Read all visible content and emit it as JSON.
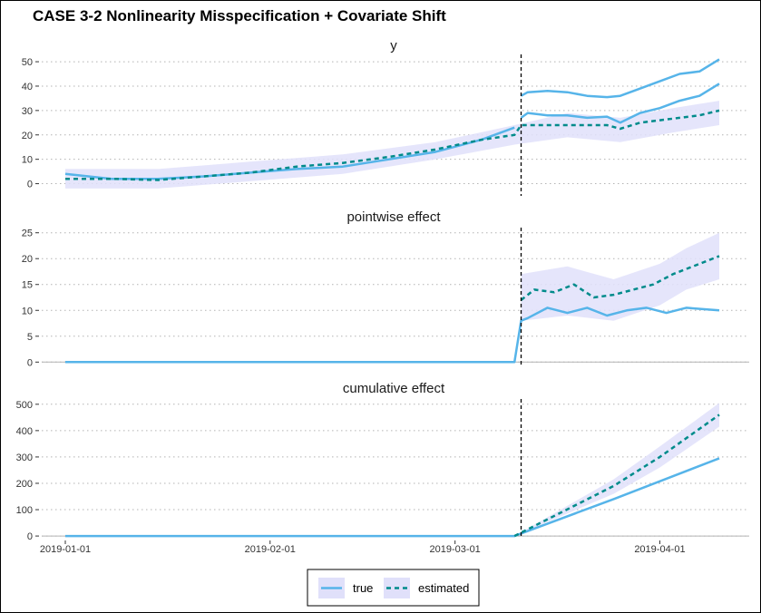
{
  "chart_data": {
    "type": "line",
    "title": "CASE 3-2 Nonlinearity Misspecification + Covariate Shift",
    "x_axis": {
      "type": "date",
      "range": [
        "2019-01-01",
        "2019-04-10"
      ],
      "tick_labels": [
        "2019-01-01",
        "2019-02-01",
        "2019-03-01",
        "2019-04-01"
      ],
      "intervention_date": "2019-03-11"
    },
    "colors": {
      "true": "#56b4e9",
      "estimated": "#008b8b",
      "band": "#e0e0fa",
      "intervention_line": "#000000"
    },
    "grid": "horizontal dotted",
    "legend": {
      "position": "bottom",
      "entries": [
        {
          "label": "true",
          "style": "solid"
        },
        {
          "label": "estimated",
          "style": "dashed"
        }
      ]
    },
    "panels": [
      {
        "title": "y",
        "ylim": [
          -5,
          53
        ],
        "yticks": [
          0,
          10,
          20,
          30,
          40,
          50
        ],
        "series": [
          {
            "name": "true",
            "style": "solid",
            "x": [
              "2019-01-01",
              "2019-01-08",
              "2019-01-15",
              "2019-01-22",
              "2019-01-29",
              "2019-02-05",
              "2019-02-12",
              "2019-02-19",
              "2019-02-26",
              "2019-03-05",
              "2019-03-10"
            ],
            "y": [
              4,
              2,
              2,
              3,
              4.5,
              6,
              7,
              10,
              13,
              18,
              23
            ]
          },
          {
            "name": "true",
            "style": "solid",
            "x": [
              "2019-03-11",
              "2019-03-12",
              "2019-03-15",
              "2019-03-18",
              "2019-03-21",
              "2019-03-24",
              "2019-03-26",
              "2019-03-29",
              "2019-04-01",
              "2019-04-04",
              "2019-04-07",
              "2019-04-10"
            ],
            "y": [
              36,
              37.5,
              38,
              37.5,
              36,
              35.5,
              36,
              39,
              42,
              45,
              46,
              51
            ]
          },
          {
            "name": "true",
            "style": "solid",
            "x": [
              "2019-03-11",
              "2019-03-12",
              "2019-03-15",
              "2019-03-18",
              "2019-03-21",
              "2019-03-24",
              "2019-03-26",
              "2019-03-29",
              "2019-04-01",
              "2019-04-04",
              "2019-04-07",
              "2019-04-10"
            ],
            "y": [
              27,
              29,
              28,
              28,
              27,
              27.5,
              25,
              29,
              31,
              34,
              36,
              41
            ]
          },
          {
            "name": "estimated",
            "style": "dashed",
            "x": [
              "2019-01-01",
              "2019-01-08",
              "2019-01-15",
              "2019-01-22",
              "2019-01-29",
              "2019-02-05",
              "2019-02-12",
              "2019-02-19",
              "2019-02-26",
              "2019-03-05",
              "2019-03-10",
              "2019-03-11",
              "2019-03-18",
              "2019-03-24",
              "2019-03-26",
              "2019-03-29",
              "2019-04-01",
              "2019-04-04",
              "2019-04-07",
              "2019-04-10"
            ],
            "y": [
              2,
              2,
              1.5,
              3,
              4.5,
              7,
              8.5,
              11,
              14,
              18,
              20,
              24,
              24,
              24,
              22.5,
              25,
              26,
              27,
              28,
              30
            ]
          }
        ],
        "band": {
          "x": [
            "2019-01-01",
            "2019-01-15",
            "2019-01-29",
            "2019-02-12",
            "2019-02-26",
            "2019-03-10",
            "2019-03-18",
            "2019-03-26",
            "2019-04-03",
            "2019-04-10"
          ],
          "lower": [
            -2,
            -2,
            1,
            4,
            10,
            16,
            19,
            17,
            21,
            24
          ],
          "upper": [
            6,
            6,
            9,
            12,
            17,
            24,
            29,
            27,
            31,
            34
          ]
        }
      },
      {
        "title": "pointwise effect",
        "ylim": [
          -1,
          26
        ],
        "yticks": [
          0,
          5,
          10,
          15,
          20,
          25
        ],
        "series": [
          {
            "name": "true",
            "style": "solid",
            "x": [
              "2019-01-01",
              "2019-03-10",
              "2019-03-11",
              "2019-03-12",
              "2019-03-15",
              "2019-03-18",
              "2019-03-21",
              "2019-03-24",
              "2019-03-27",
              "2019-03-30",
              "2019-04-02",
              "2019-04-05",
              "2019-04-10"
            ],
            "y": [
              0,
              0,
              8,
              8.5,
              10.5,
              9.5,
              10.5,
              9,
              10,
              10.5,
              9.5,
              10.5,
              10
            ]
          },
          {
            "name": "estimated",
            "style": "dashed",
            "x": [
              "2019-03-11",
              "2019-03-13",
              "2019-03-16",
              "2019-03-19",
              "2019-03-22",
              "2019-03-25",
              "2019-03-28",
              "2019-03-31",
              "2019-04-03",
              "2019-04-06",
              "2019-04-10"
            ],
            "y": [
              12,
              14,
              13.5,
              15,
              12.5,
              13,
              14,
              15,
              17,
              18.5,
              20.5
            ]
          }
        ],
        "band": {
          "x": [
            "2019-03-11",
            "2019-03-18",
            "2019-03-25",
            "2019-04-01",
            "2019-04-05",
            "2019-04-10"
          ],
          "lower": [
            8,
            9,
            8,
            11,
            14,
            16
          ],
          "upper": [
            17,
            18.5,
            16,
            19,
            22,
            25
          ]
        }
      },
      {
        "title": "cumulative effect",
        "ylim": [
          -10,
          520
        ],
        "yticks": [
          0,
          100,
          200,
          300,
          400,
          500
        ],
        "series": [
          {
            "name": "true",
            "style": "solid",
            "x": [
              "2019-01-01",
              "2019-03-10",
              "2019-03-25",
              "2019-04-10"
            ],
            "y": [
              0,
              0,
              140,
              295
            ]
          },
          {
            "name": "estimated",
            "style": "dashed",
            "x": [
              "2019-03-10",
              "2019-03-25",
              "2019-04-01",
              "2019-04-10"
            ],
            "y": [
              0,
              190,
              300,
              460
            ]
          }
        ],
        "band": {
          "x": [
            "2019-03-10",
            "2019-03-25",
            "2019-04-01",
            "2019-04-10"
          ],
          "lower": [
            0,
            160,
            260,
            415
          ],
          "upper": [
            0,
            215,
            340,
            505
          ]
        }
      }
    ]
  }
}
